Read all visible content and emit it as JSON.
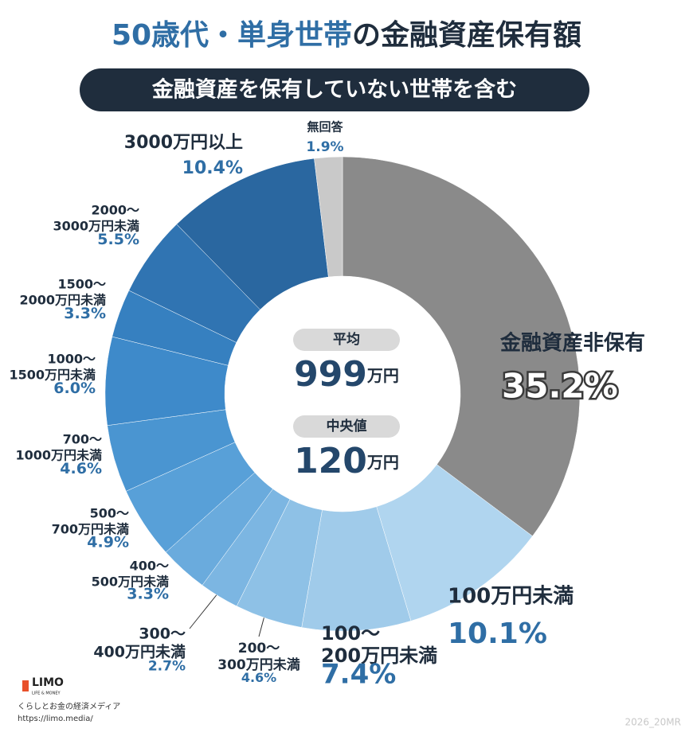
{
  "chart_data": {
    "type": "donut",
    "title": {
      "highlight": "50歳代・単身世帯",
      "rest": "の金融資産保有額"
    },
    "subtitle": "金融資産を保有していない世帯を含む",
    "categories": [
      [
        "金融資産非保有"
      ],
      [
        "100万円未満"
      ],
      [
        "100〜",
        "200万円未満"
      ],
      [
        "200〜",
        "300万円未満"
      ],
      [
        "300〜",
        "400万円未満"
      ],
      [
        "400〜",
        "500万円未満"
      ],
      [
        "500〜",
        "700万円未満"
      ],
      [
        "700〜",
        "1000万円未満"
      ],
      [
        "1000〜",
        "1500万円未満"
      ],
      [
        "1500〜",
        "2000万円未満"
      ],
      [
        "2000〜",
        "3000万円未満"
      ],
      [
        "3000万円以上"
      ],
      [
        "無回答"
      ]
    ],
    "values": [
      35.2,
      10.1,
      7.4,
      4.6,
      2.7,
      3.3,
      4.9,
      4.6,
      6.0,
      3.3,
      5.5,
      10.4,
      1.9
    ],
    "value_labels": [
      "35.2%",
      "10.1%",
      "7.4%",
      "4.6%",
      "2.7%",
      "3.3%",
      "4.9%",
      "4.6%",
      "6.0%",
      "3.3%",
      "5.5%",
      "10.4%",
      "1.9%"
    ],
    "colors": [
      "#8a8a8a",
      "#b0d5ef",
      "#a0cbea",
      "#8ec1e6",
      "#7cb6e2",
      "#6aabdd",
      "#58a0d8",
      "#4a95d1",
      "#3e8aca",
      "#3680c0",
      "#3074b2",
      "#2a67a0",
      "#c9c9c9"
    ],
    "center": [
      {
        "label": "平均",
        "value": 999,
        "unit": "万円"
      },
      {
        "label": "中央値",
        "value": 120,
        "unit": "万円"
      }
    ]
  },
  "footer": {
    "logo": "LIMO",
    "logo_sub": "LIFE & MONEY",
    "tagline": "くらしとお金の経済メディア",
    "url": "https://limo.media/",
    "code": "2026_20MR"
  }
}
